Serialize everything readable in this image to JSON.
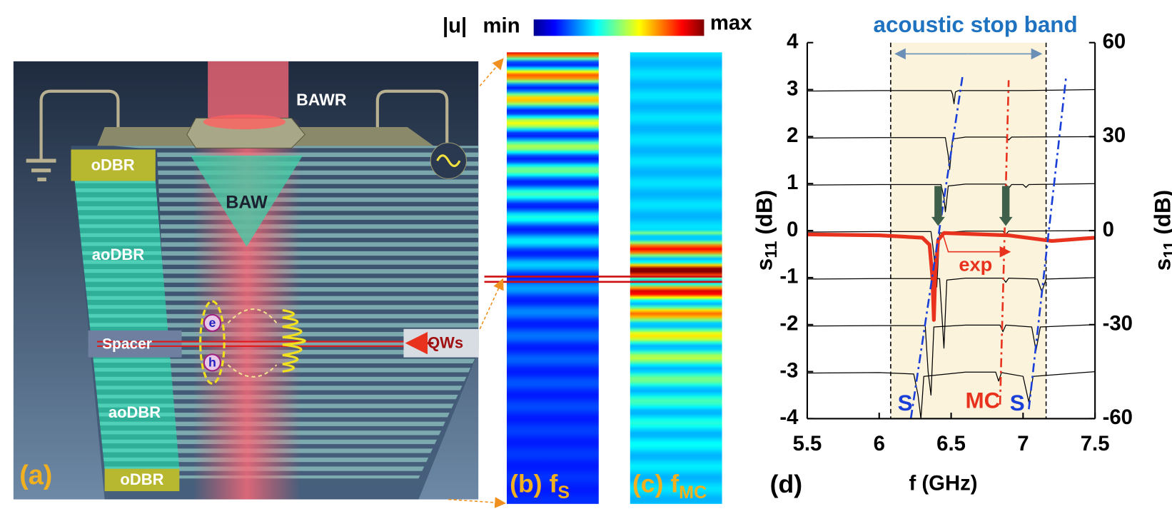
{
  "panel_a": {
    "label": "(a)",
    "bawr": "BAWR",
    "odbr_top": "oDBR",
    "baw": "BAW",
    "aodbr_top": "aoDBR",
    "spacer": "Spacer",
    "qws": "QWs",
    "electron": "e",
    "hole": "h",
    "aodbr_bottom": "aoDBR",
    "odbr_bottom": "oDBR"
  },
  "colorbar": {
    "quantity": "|u|",
    "min": "min",
    "max": "max"
  },
  "panel_b": {
    "label": "(b) f",
    "subscript": "S"
  },
  "panel_c": {
    "label": "(c) f",
    "subscript": "MC"
  },
  "chart_data": {
    "type": "line",
    "title": "acoustic stop band",
    "panel_label": "(d)",
    "xlabel": "f (GHz)",
    "ylabel": "s",
    "ylabel_subscript": "11",
    "ylabel_unit": " (dB)",
    "xlim": [
      5.5,
      7.5
    ],
    "xticks": [
      5.5,
      6,
      6.5,
      7,
      7.5
    ],
    "ylim": [
      -4,
      4
    ],
    "yticks": [
      -4,
      -3,
      -2,
      -1,
      0,
      1,
      2,
      3,
      4
    ],
    "y2lim": [
      -60,
      60
    ],
    "y2ticks": [
      -60,
      -30,
      0,
      30,
      60
    ],
    "stop_band": [
      6.08,
      7.16
    ],
    "series": [
      {
        "color": "#000000",
        "style": "solid",
        "x": [
          5.5,
          6.0,
          6.5,
          6.51,
          6.52,
          6.53,
          6.55,
          7.0,
          7.5
        ],
        "values": [
          2.97,
          2.98,
          2.98,
          2.9,
          2.7,
          2.95,
          2.98,
          2.98,
          3.0
        ]
      },
      {
        "color": "#000000",
        "style": "solid",
        "x": [
          5.5,
          6.0,
          6.46,
          6.48,
          6.49,
          6.51,
          6.6,
          6.88,
          6.9,
          6.92,
          7.5
        ],
        "values": [
          1.97,
          1.98,
          1.98,
          1.6,
          1.3,
          1.95,
          1.99,
          1.99,
          1.93,
          1.99,
          2.0
        ]
      },
      {
        "color": "#000000",
        "style": "solid",
        "x": [
          5.5,
          6.0,
          6.43,
          6.45,
          6.46,
          6.48,
          6.6,
          6.88,
          6.9,
          6.92,
          7.0,
          7.02,
          7.04,
          7.5
        ],
        "values": [
          0.97,
          0.98,
          0.98,
          0.7,
          0.4,
          0.95,
          0.99,
          0.99,
          0.9,
          0.98,
          0.98,
          0.92,
          0.98,
          1.0
        ]
      },
      {
        "color": "#000000",
        "style": "solid",
        "x": [
          5.5,
          6.0,
          6.36,
          6.38,
          6.4,
          6.42,
          6.6,
          6.86,
          6.88,
          6.9,
          7.5
        ],
        "values": [
          -0.03,
          -0.02,
          -0.02,
          -0.5,
          -1.2,
          -0.05,
          -0.01,
          -0.01,
          -0.08,
          -0.01,
          0.0
        ]
      },
      {
        "color": "#000000",
        "style": "solid",
        "x": [
          5.5,
          6.0,
          6.42,
          6.44,
          6.45,
          6.47,
          6.6,
          6.86,
          6.88,
          6.9,
          7.1,
          7.13,
          7.16,
          7.5
        ],
        "values": [
          -1.03,
          -1.02,
          -1.02,
          -2.0,
          -2.5,
          -1.05,
          -1.01,
          -1.01,
          -1.1,
          -1.01,
          -1.03,
          -1.3,
          -1.03,
          -1.0
        ]
      },
      {
        "color": "#000000",
        "style": "solid",
        "x": [
          5.5,
          6.0,
          6.32,
          6.34,
          6.36,
          6.38,
          6.6,
          6.84,
          6.86,
          6.88,
          7.06,
          7.09,
          7.12,
          7.5
        ],
        "values": [
          -2.03,
          -2.02,
          -2.02,
          -3.0,
          -3.5,
          -2.05,
          -2.01,
          -2.01,
          -2.15,
          -2.01,
          -2.05,
          -2.55,
          -2.05,
          -2.0
        ]
      },
      {
        "color": "#000000",
        "style": "solid",
        "x": [
          5.5,
          6.0,
          6.24,
          6.27,
          6.29,
          6.31,
          6.6,
          6.81,
          6.83,
          6.85,
          7.0,
          7.04,
          7.07,
          7.5
        ],
        "values": [
          -3.03,
          -3.02,
          -3.05,
          -3.5,
          -4.0,
          -3.1,
          -3.01,
          -3.01,
          -3.2,
          -3.02,
          -3.1,
          -3.65,
          -3.1,
          -3.0
        ]
      },
      {
        "color": "#e8321e",
        "style": "thick",
        "x": [
          5.5,
          6.0,
          6.3,
          6.35,
          6.37,
          6.38,
          6.39,
          6.41,
          6.45,
          6.9,
          7.2,
          7.5
        ],
        "values": [
          -0.08,
          -0.1,
          -0.15,
          -0.3,
          -1.0,
          -1.9,
          -0.9,
          -0.2,
          -0.05,
          -0.1,
          -0.22,
          -0.15
        ]
      },
      {
        "color": "#1a3fd8",
        "style": "dashdot",
        "x": [
          6.22,
          6.58
        ],
        "values": [
          -4,
          3.3
        ]
      },
      {
        "color": "#e8321e",
        "style": "dashdot",
        "x": [
          6.84,
          6.9
        ],
        "values": [
          -3.7,
          3.2
        ]
      },
      {
        "color": "#1a3fd8",
        "style": "dashdot",
        "x": [
          7.04,
          7.3
        ],
        "values": [
          -3.8,
          3.3
        ]
      }
    ],
    "annotations": [
      {
        "text": "exp",
        "color": "#e8321e"
      },
      {
        "text": "S",
        "color": "#1a3fd8"
      },
      {
        "text": "MC",
        "color": "#e8321e"
      },
      {
        "text": "S",
        "color": "#1a3fd8"
      }
    ]
  }
}
